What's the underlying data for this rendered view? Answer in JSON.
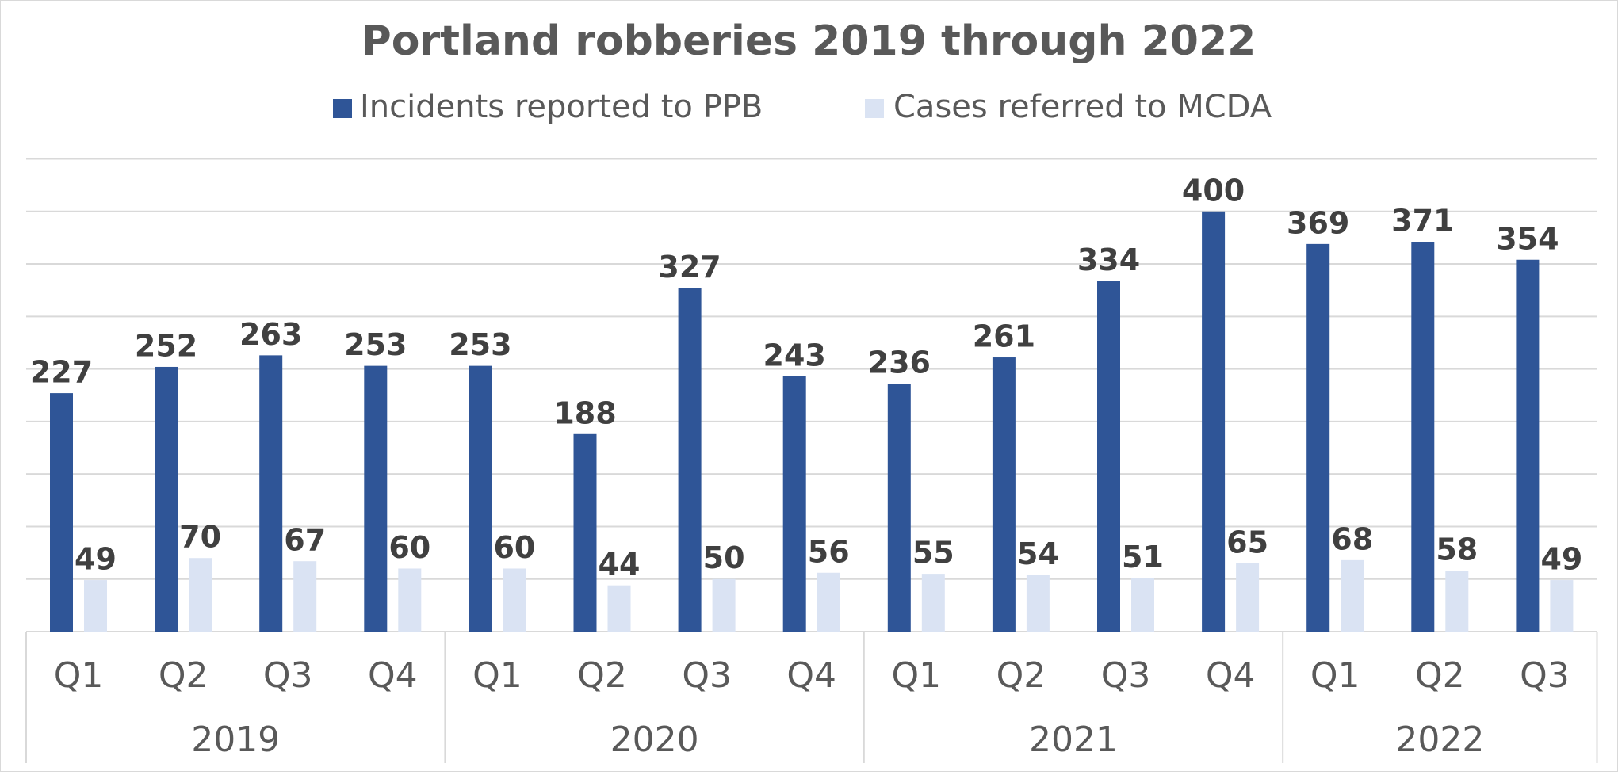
{
  "chart_data": {
    "type": "bar",
    "title": "Portland robberies 2019 through 2022",
    "groups": [
      {
        "name": "2019",
        "categories": [
          "Q1",
          "Q2",
          "Q3",
          "Q4"
        ]
      },
      {
        "name": "2020",
        "categories": [
          "Q1",
          "Q2",
          "Q3",
          "Q4"
        ]
      },
      {
        "name": "2021",
        "categories": [
          "Q1",
          "Q2",
          "Q3",
          "Q4"
        ]
      },
      {
        "name": "2022",
        "categories": [
          "Q1",
          "Q2",
          "Q3"
        ]
      }
    ],
    "series": [
      {
        "name": "Incidents reported to PPB",
        "color": "#2f5597",
        "values": [
          227,
          252,
          263,
          253,
          253,
          188,
          327,
          243,
          236,
          261,
          334,
          400,
          369,
          371,
          354
        ]
      },
      {
        "name": "Cases referred to MCDA",
        "color": "#dae3f3",
        "values": [
          49,
          70,
          67,
          60,
          60,
          44,
          50,
          56,
          55,
          54,
          51,
          65,
          68,
          58,
          49
        ]
      }
    ],
    "ylim": [
      0,
      450
    ],
    "yticks": [
      0,
      50,
      100,
      150,
      200,
      250,
      300,
      350,
      400,
      450
    ],
    "grid": true,
    "legend": "top"
  }
}
